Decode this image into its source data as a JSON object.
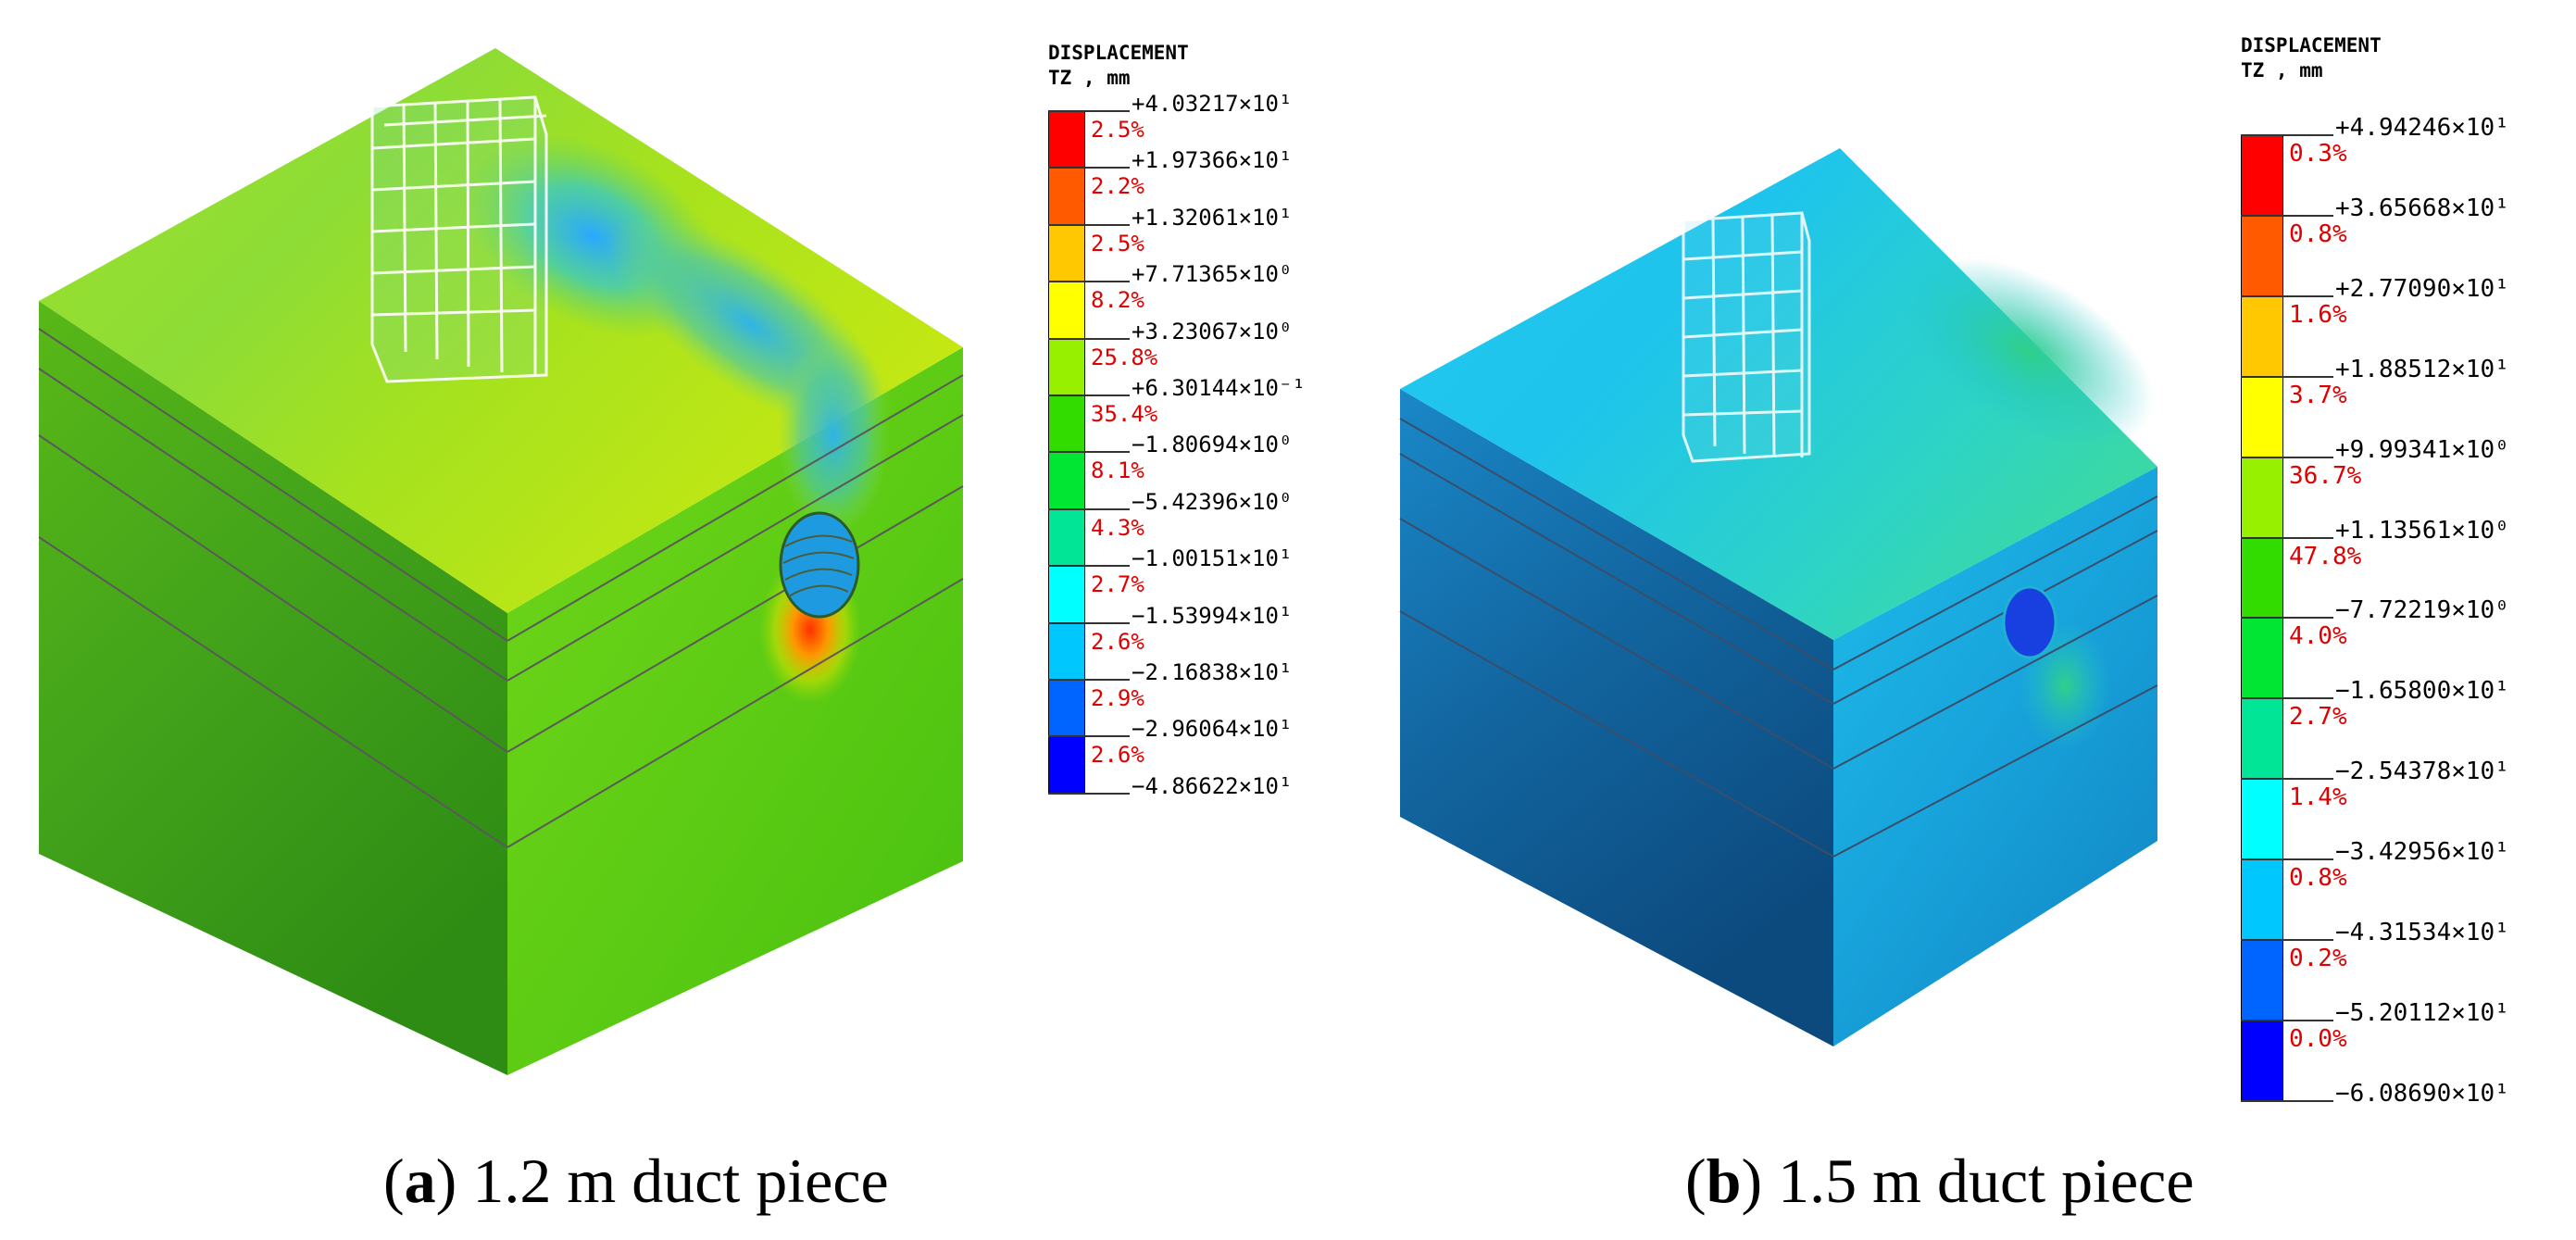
{
  "panels": [
    {
      "letter": "a",
      "caption_open": "(",
      "caption_close": ")",
      "caption_text": " 1.2 m duct piece",
      "legend_title": "DISPLACEMENT",
      "legend_units": "TZ , mm",
      "ticks": [
        "+4.03217×10¹",
        "+1.97366×10¹",
        "+1.32061×10¹",
        "+7.71365×10⁰",
        "+3.23067×10⁰",
        "+6.30144×10⁻¹",
        "−1.80694×10⁰",
        "−5.42396×10⁰",
        "−1.00151×10¹",
        "−1.53994×10¹",
        "−2.16838×10¹",
        "−2.96064×10¹",
        "−4.86622×10¹"
      ],
      "percents": [
        "2.5%",
        "2.2%",
        "2.5%",
        "8.2%",
        "25.8%",
        "35.4%",
        "8.1%",
        "4.3%",
        "2.7%",
        "2.6%",
        "2.9%",
        "2.6%"
      ],
      "band_colors": [
        "#ff0000",
        "#ff5a00",
        "#ffc800",
        "#ffff00",
        "#96f000",
        "#32dc00",
        "#00e632",
        "#00e696",
        "#00ffff",
        "#00c8ff",
        "#0064ff",
        "#0000ff"
      ]
    },
    {
      "letter": "b",
      "caption_open": "(",
      "caption_close": ")",
      "caption_text": " 1.5 m duct piece",
      "legend_title": "DISPLACEMENT",
      "legend_units": "TZ , mm",
      "ticks": [
        "+4.94246×10¹",
        "+3.65668×10¹",
        "+2.77090×10¹",
        "+1.88512×10¹",
        "+9.99341×10⁰",
        "+1.13561×10⁰",
        "−7.72219×10⁰",
        "−1.65800×10¹",
        "−2.54378×10¹",
        "−3.42956×10¹",
        "−4.31534×10¹",
        "−5.20112×10¹",
        "−6.08690×10¹"
      ],
      "percents": [
        "0.3%",
        "0.8%",
        "1.6%",
        "3.7%",
        "36.7%",
        "47.8%",
        "4.0%",
        "2.7%",
        "1.4%",
        "0.8%",
        "0.2%",
        "0.0%"
      ],
      "band_colors": [
        "#ff0000",
        "#ff5a00",
        "#ffc800",
        "#ffff00",
        "#96f000",
        "#32dc00",
        "#00e632",
        "#00e696",
        "#00ffff",
        "#00c8ff",
        "#0064ff",
        "#0000ff"
      ]
    }
  ]
}
